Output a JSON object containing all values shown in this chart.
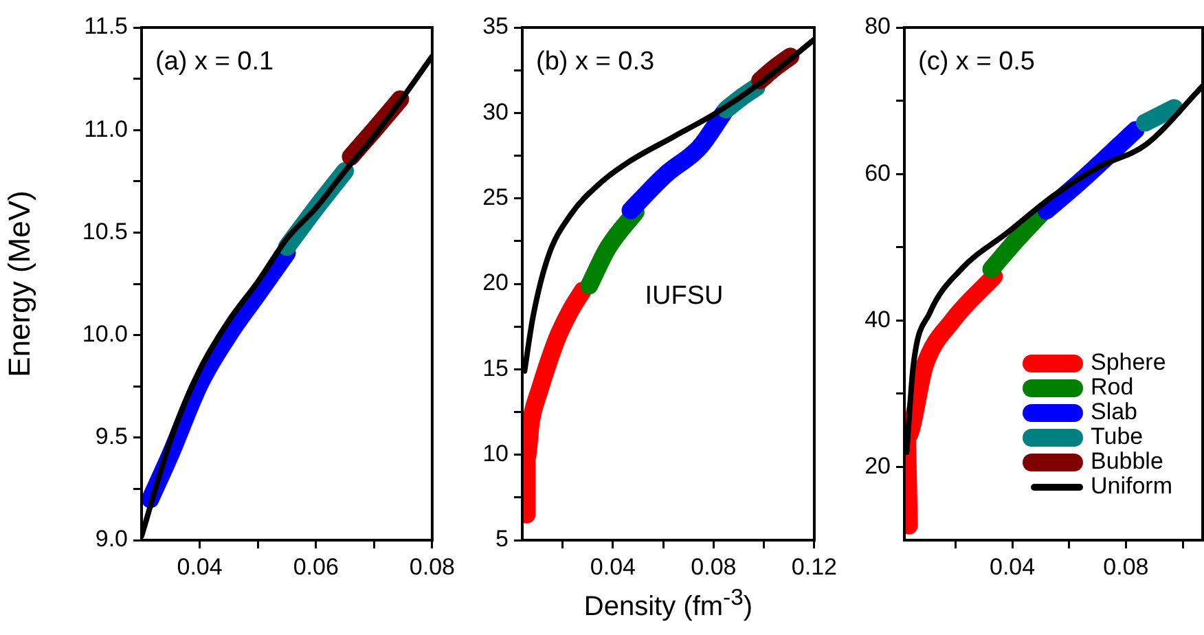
{
  "chart_data": [
    {
      "type": "line",
      "ylabel": "Energy (MeV)",
      "annotations": [
        "(a) x = 0.1"
      ],
      "legend": false,
      "grid": false,
      "marker": "none",
      "line_style": "solid",
      "xlim": [
        0.03,
        0.08
      ],
      "xticks": [
        0.04,
        {
          "value": 0.05,
          "label": null
        },
        0.06,
        {
          "value": 0.07,
          "label": null
        },
        0.08
      ],
      "ylim": [
        9,
        11.5
      ],
      "yticks": [
        {
          "value": 9,
          "label": "9.0"
        },
        {
          "value": 9.25,
          "label": null
        },
        9.5,
        {
          "value": 9.75,
          "label": null
        },
        {
          "value": 10,
          "label": "10.0"
        },
        {
          "value": 10.25,
          "label": null
        },
        10.5,
        {
          "value": 10.75,
          "label": null
        },
        {
          "value": 11,
          "label": "11.0"
        },
        {
          "value": 11.25,
          "label": null
        },
        11.5
      ],
      "series": [
        {
          "color": "#0000ff",
          "x": [
            0.0315,
            0.035,
            0.04,
            0.045,
            0.05,
            0.055
          ],
          "values": [
            9.2,
            9.42,
            9.76,
            10.0,
            10.2,
            10.4
          ]
        },
        {
          "color": "#008080",
          "x": [
            0.055,
            0.06,
            0.065
          ],
          "values": [
            10.43,
            10.62,
            10.8
          ]
        },
        {
          "color": "#800000",
          "x": [
            0.066,
            0.07,
            0.0745
          ],
          "values": [
            10.87,
            11.0,
            11.15
          ]
        },
        {
          "color": "#000000",
          "x": [
            0.03,
            0.035,
            0.04,
            0.045,
            0.05,
            0.055,
            0.06,
            0.065,
            0.07,
            0.075,
            0.08
          ],
          "values": [
            9.02,
            9.49,
            9.83,
            10.07,
            10.26,
            10.47,
            10.62,
            10.8,
            10.97,
            11.16,
            11.36
          ]
        }
      ]
    },
    {
      "type": "line",
      "xlabel": "Density (fm$^{-3}$)",
      "annotations": [
        "(b) x = 0.3",
        "IUFSU"
      ],
      "legend": false,
      "grid": false,
      "marker": "none",
      "line_style": "solid",
      "xlim": [
        0.004,
        0.12
      ],
      "xticks": [
        {
          "value": 0.02,
          "label": null
        },
        0.04,
        {
          "value": 0.06,
          "label": null
        },
        0.08,
        {
          "value": 0.1,
          "label": null
        },
        0.12
      ],
      "ylim": [
        5,
        35
      ],
      "yticks": [
        5,
        {
          "value": 7.5,
          "label": null
        },
        10,
        {
          "value": 12.5,
          "label": null
        },
        15,
        {
          "value": 17.5,
          "label": null
        },
        20,
        {
          "value": 22.5,
          "label": null
        },
        25,
        {
          "value": 27.5,
          "label": null
        },
        30,
        {
          "value": 32.5,
          "label": null
        },
        35
      ],
      "series": [
        {
          "color": "#ff0000",
          "x": [
            0.0057,
            0.0057,
            0.0075,
            0.0109,
            0.0178,
            0.023,
            0.028
          ],
          "values": [
            6.5,
            9.8,
            12.0,
            13.8,
            16.8,
            18.4,
            19.6
          ]
        },
        {
          "color": "#008000",
          "x": [
            0.0306,
            0.038,
            0.049
          ],
          "values": [
            19.9,
            22.1,
            24.2
          ]
        },
        {
          "color": "#0000ff",
          "x": [
            0.047,
            0.061,
            0.0745,
            0.084
          ],
          "values": [
            24.3,
            26.4,
            28.0,
            30.0
          ]
        },
        {
          "color": "#008080",
          "x": [
            0.085,
            0.091,
            0.097
          ],
          "values": [
            30.2,
            30.9,
            31.5
          ]
        },
        {
          "color": "#800000",
          "x": [
            0.0985,
            0.104,
            0.1105
          ],
          "values": [
            31.9,
            32.6,
            33.3
          ]
        },
        {
          "color": "#000000",
          "x": [
            0.0049,
            0.0083,
            0.0143,
            0.023,
            0.035,
            0.047,
            0.064,
            0.081,
            0.099,
            0.12
          ],
          "values": [
            14.9,
            18.1,
            21.6,
            24.0,
            25.9,
            27.2,
            28.6,
            30.0,
            31.8,
            34.3
          ]
        }
      ]
    },
    {
      "type": "line",
      "annotations": [
        "(c) x = 0.5"
      ],
      "legend": "bottom right",
      "grid": false,
      "marker": "none",
      "line_style": "solid",
      "xlim": [
        0.002,
        0.107
      ],
      "xticks": [
        {
          "value": 0.02,
          "label": null
        },
        0.04,
        {
          "value": 0.06,
          "label": null
        },
        0.08,
        {
          "value": 0.1,
          "label": null
        }
      ],
      "ylim": [
        10,
        80
      ],
      "yticks": [
        20,
        {
          "value": 30,
          "label": null
        },
        40,
        {
          "value": 50,
          "label": null
        },
        60,
        {
          "value": 70,
          "label": null
        },
        80
      ],
      "series": [
        {
          "name": "Sphere",
          "color": "#ff0000",
          "x": [
            0.0036,
            0.0028,
            0.0093,
            0.019,
            0.0335
          ],
          "values": [
            12,
            24,
            34,
            40,
            46
          ]
        },
        {
          "name": "Rod",
          "color": "#008000",
          "x": [
            0.0326,
            0.0415,
            0.0512
          ],
          "values": [
            47,
            51,
            55
          ]
        },
        {
          "name": "Slab",
          "color": "#0000ff",
          "x": [
            0.052,
            0.064,
            0.0834
          ],
          "values": [
            55,
            59,
            66
          ]
        },
        {
          "name": "Tube",
          "color": "#008080",
          "x": [
            0.0867,
            0.097
          ],
          "values": [
            67,
            69
          ]
        },
        {
          "name": "Bubble",
          "color": "#800000"
        },
        {
          "name": "Uniform",
          "color": "#000000",
          "x": [
            0.0028,
            0.0052,
            0.0109,
            0.022,
            0.0383,
            0.0544,
            0.0706,
            0.087,
            0.107
          ],
          "values": [
            22,
            34,
            41,
            47,
            52,
            57,
            61,
            64,
            72
          ]
        }
      ]
    }
  ]
}
